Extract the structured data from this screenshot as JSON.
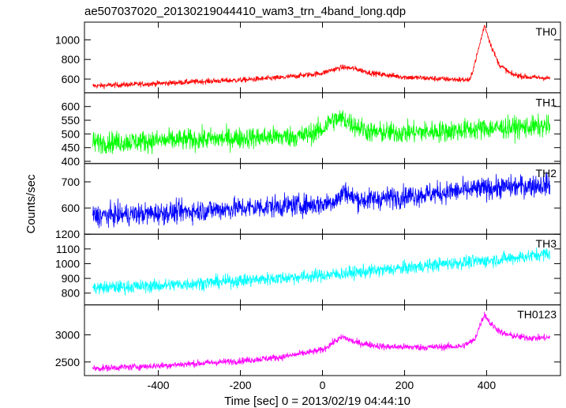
{
  "chart_data": {
    "type": "line",
    "title": "ae507037020_20130219044410_wam3_trn_4band_long.qdp",
    "xlabel": "Time [sec] 0 = 2013/02/19 04:44:10",
    "ylabel": "Counts/sec",
    "xlim": [
      -580,
      580
    ],
    "xticks": [
      -400,
      -200,
      0,
      200,
      400
    ],
    "grid": false,
    "panels": [
      {
        "name": "TH0",
        "color": "#ff0000",
        "ylim": [
          460,
          1180
        ],
        "yticks": [
          600,
          800,
          1000
        ],
        "x": [
          -560,
          -500,
          -400,
          -300,
          -200,
          -100,
          0,
          20,
          50,
          80,
          120,
          200,
          300,
          360,
          380,
          395,
          410,
          430,
          460,
          500,
          550
        ],
        "y": [
          530,
          540,
          555,
          575,
          590,
          615,
          660,
          690,
          720,
          705,
          660,
          620,
          600,
          590,
          900,
          1150,
          950,
          750,
          650,
          620,
          610
        ],
        "noise": 20
      },
      {
        "name": "TH1",
        "color": "#00ff00",
        "ylim": [
          392,
          650
        ],
        "yticks": [
          400,
          450,
          500,
          550,
          600
        ],
        "x": [
          -560,
          -400,
          -200,
          -50,
          0,
          20,
          50,
          80,
          120,
          200,
          300,
          400,
          500,
          550
        ],
        "y": [
          468,
          475,
          485,
          492,
          515,
          550,
          555,
          530,
          505,
          505,
          510,
          520,
          525,
          528
        ],
        "noise": 28
      },
      {
        "name": "TH2",
        "color": "#0000ff",
        "ylim": [
          500,
          770
        ],
        "yticks": [
          600,
          700
        ],
        "x": [
          -560,
          -400,
          -200,
          0,
          40,
          55,
          70,
          100,
          200,
          300,
          400,
          500,
          550
        ],
        "y": [
          570,
          580,
          600,
          615,
          635,
          670,
          640,
          630,
          645,
          660,
          675,
          685,
          690
        ],
        "noise": 30
      },
      {
        "name": "TH3",
        "color": "#00ffff",
        "ylim": [
          720,
          1200
        ],
        "yticks": [
          800,
          900,
          1000,
          1100,
          1200
        ],
        "x": [
          -560,
          -400,
          -200,
          0,
          100,
          200,
          300,
          400,
          500,
          550
        ],
        "y": [
          835,
          850,
          885,
          920,
          945,
          970,
          1000,
          1020,
          1050,
          1070
        ],
        "noise": 32
      },
      {
        "name": "TH0123",
        "color": "#ff00ff",
        "ylim": [
          2250,
          3550
        ],
        "yticks": [
          2500,
          3000
        ],
        "x": [
          -560,
          -400,
          -200,
          -100,
          0,
          30,
          50,
          80,
          150,
          250,
          340,
          370,
          385,
          395,
          410,
          440,
          480,
          520,
          550
        ],
        "y": [
          2380,
          2430,
          2520,
          2590,
          2720,
          2880,
          2960,
          2860,
          2780,
          2770,
          2790,
          2900,
          3200,
          3380,
          3200,
          3020,
          2960,
          2940,
          2950
        ],
        "noise": 45
      }
    ]
  }
}
